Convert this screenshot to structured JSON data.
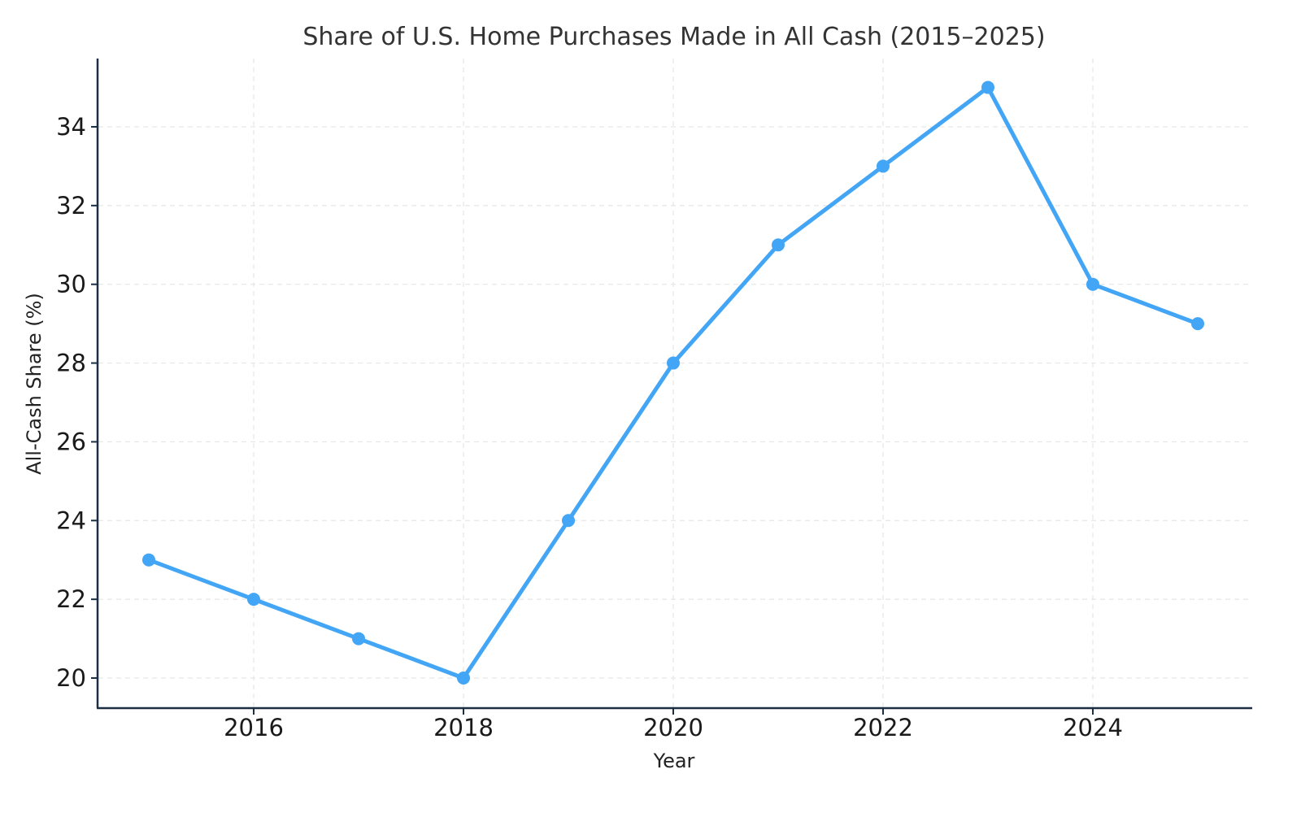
{
  "chart_data": {
    "type": "line",
    "title": "Share of U.S. Home Purchases Made in All Cash (2015–2025)",
    "xlabel": "Year",
    "ylabel": "All-Cash Share (%)",
    "x": [
      2015,
      2016,
      2017,
      2018,
      2019,
      2020,
      2021,
      2022,
      2023,
      2024,
      2025
    ],
    "series": [
      {
        "name": "All-Cash Share (%)",
        "values": [
          23,
          22,
          21,
          20,
          24,
          28,
          31,
          33,
          35,
          30,
          29
        ],
        "color": "#42a5f5",
        "marker": "circle"
      }
    ],
    "xticks": [
      2016,
      2018,
      2020,
      2022,
      2024
    ],
    "yticks": [
      20,
      22,
      24,
      26,
      28,
      30,
      32,
      34
    ],
    "xlim": [
      2014.5,
      2025.5
    ],
    "ylim": [
      19.25,
      35.75
    ],
    "grid": true,
    "legend": false
  }
}
